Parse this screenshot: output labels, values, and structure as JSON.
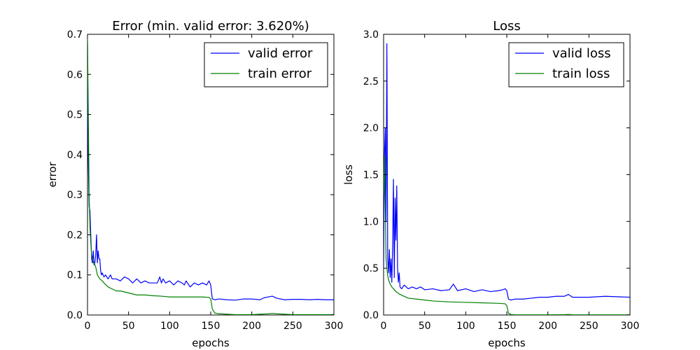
{
  "chart_data": [
    {
      "type": "line",
      "title": "Error (min. valid error: 3.620%)",
      "xlabel": "epochs",
      "ylabel": "error",
      "xlim": [
        0,
        300
      ],
      "ylim": [
        0,
        0.7
      ],
      "xticks": [
        "0",
        "50",
        "100",
        "150",
        "200",
        "250",
        "300"
      ],
      "yticks": [
        "0.0",
        "0.1",
        "0.2",
        "0.3",
        "0.4",
        "0.5",
        "0.6",
        "0.7"
      ],
      "grid": false,
      "legend_position": "top-right",
      "series": [
        {
          "name": "valid error",
          "color": "#0000ff",
          "x": [
            0,
            1,
            2,
            3,
            4,
            5,
            6,
            7,
            8,
            9,
            10,
            11,
            12,
            13,
            14,
            15,
            16,
            17,
            18,
            19,
            20,
            22,
            25,
            28,
            30,
            35,
            40,
            45,
            50,
            55,
            60,
            65,
            70,
            75,
            80,
            85,
            88,
            90,
            92,
            95,
            100,
            105,
            110,
            115,
            118,
            120,
            125,
            130,
            135,
            140,
            145,
            148,
            150,
            152,
            155,
            160,
            170,
            180,
            190,
            200,
            210,
            215,
            220,
            225,
            230,
            240,
            250,
            260,
            270,
            280,
            290,
            300
          ],
          "y": [
            0.68,
            0.38,
            0.27,
            0.26,
            0.2,
            0.14,
            0.13,
            0.16,
            0.125,
            0.13,
            0.15,
            0.2,
            0.13,
            0.16,
            0.14,
            0.14,
            0.11,
            0.1,
            0.105,
            0.1,
            0.095,
            0.1,
            0.09,
            0.1,
            0.09,
            0.09,
            0.085,
            0.095,
            0.09,
            0.08,
            0.09,
            0.08,
            0.085,
            0.08,
            0.08,
            0.08,
            0.095,
            0.08,
            0.09,
            0.08,
            0.085,
            0.075,
            0.085,
            0.08,
            0.075,
            0.085,
            0.07,
            0.08,
            0.075,
            0.08,
            0.075,
            0.085,
            0.075,
            0.04,
            0.038,
            0.04,
            0.038,
            0.037,
            0.04,
            0.04,
            0.038,
            0.043,
            0.045,
            0.047,
            0.042,
            0.038,
            0.039,
            0.039,
            0.038,
            0.039,
            0.038,
            0.038
          ]
        },
        {
          "name": "train error",
          "color": "#008000",
          "x": [
            0,
            1,
            2,
            3,
            4,
            5,
            6,
            7,
            8,
            9,
            10,
            12,
            15,
            18,
            20,
            25,
            30,
            35,
            40,
            50,
            60,
            70,
            80,
            90,
            100,
            110,
            120,
            130,
            140,
            148,
            150,
            152,
            155,
            160,
            170,
            180,
            190,
            200,
            210,
            220,
            225,
            230,
            250,
            270,
            300
          ],
          "y": [
            0.69,
            0.5,
            0.3,
            0.22,
            0.18,
            0.15,
            0.14,
            0.13,
            0.13,
            0.125,
            0.12,
            0.1,
            0.09,
            0.085,
            0.08,
            0.07,
            0.065,
            0.06,
            0.06,
            0.055,
            0.05,
            0.05,
            0.048,
            0.047,
            0.045,
            0.045,
            0.045,
            0.045,
            0.045,
            0.044,
            0.04,
            0.015,
            0.005,
            0.003,
            0.002,
            0.001,
            0.001,
            0.001,
            0.002,
            0.003,
            0.004,
            0.003,
            0.001,
            0.001,
            0.001
          ]
        }
      ]
    },
    {
      "type": "line",
      "title": "Loss",
      "xlabel": "epochs",
      "ylabel": "loss",
      "xlim": [
        0,
        300
      ],
      "ylim": [
        0,
        3.0
      ],
      "xticks": [
        "0",
        "50",
        "100",
        "150",
        "200",
        "250",
        "300"
      ],
      "yticks": [
        "0.0",
        "0.5",
        "1.0",
        "1.5",
        "2.0",
        "2.5",
        "3.0"
      ],
      "grid": false,
      "legend_position": "top-right",
      "series": [
        {
          "name": "valid loss",
          "color": "#0000ff",
          "x": [
            0,
            1,
            2,
            3,
            4,
            5,
            6,
            7,
            8,
            9,
            10,
            11,
            12,
            13,
            14,
            15,
            16,
            17,
            18,
            19,
            20,
            22,
            25,
            30,
            35,
            40,
            45,
            50,
            60,
            70,
            80,
            85,
            90,
            100,
            110,
            120,
            130,
            140,
            145,
            148,
            150,
            152,
            155,
            160,
            170,
            180,
            190,
            200,
            210,
            220,
            225,
            230,
            240,
            250,
            270,
            300
          ],
          "y": [
            0.5,
            1.7,
            2.0,
            1.0,
            2.9,
            0.6,
            0.45,
            0.7,
            0.4,
            0.6,
            0.35,
            0.75,
            1.45,
            0.4,
            1.25,
            0.8,
            1.38,
            0.5,
            0.35,
            0.45,
            0.3,
            0.28,
            0.32,
            0.28,
            0.3,
            0.28,
            0.3,
            0.27,
            0.28,
            0.26,
            0.27,
            0.33,
            0.26,
            0.28,
            0.25,
            0.27,
            0.25,
            0.26,
            0.27,
            0.28,
            0.26,
            0.17,
            0.16,
            0.17,
            0.17,
            0.18,
            0.19,
            0.19,
            0.2,
            0.2,
            0.22,
            0.19,
            0.19,
            0.19,
            0.2,
            0.19
          ]
        },
        {
          "name": "train loss",
          "color": "#008000",
          "x": [
            0,
            1,
            2,
            3,
            4,
            5,
            6,
            7,
            8,
            10,
            12,
            15,
            20,
            25,
            30,
            40,
            50,
            60,
            80,
            100,
            120,
            140,
            148,
            150,
            152,
            155,
            160,
            180,
            200,
            220,
            225,
            230,
            250,
            300
          ],
          "y": [
            1.3,
            1.7,
            1.2,
            0.6,
            0.5,
            0.42,
            0.38,
            0.35,
            0.33,
            0.3,
            0.28,
            0.25,
            0.22,
            0.2,
            0.18,
            0.17,
            0.16,
            0.15,
            0.14,
            0.135,
            0.13,
            0.125,
            0.12,
            0.1,
            0.02,
            0.005,
            0.003,
            0.002,
            0.002,
            0.004,
            0.006,
            0.003,
            0.002,
            0.002
          ]
        }
      ]
    }
  ]
}
